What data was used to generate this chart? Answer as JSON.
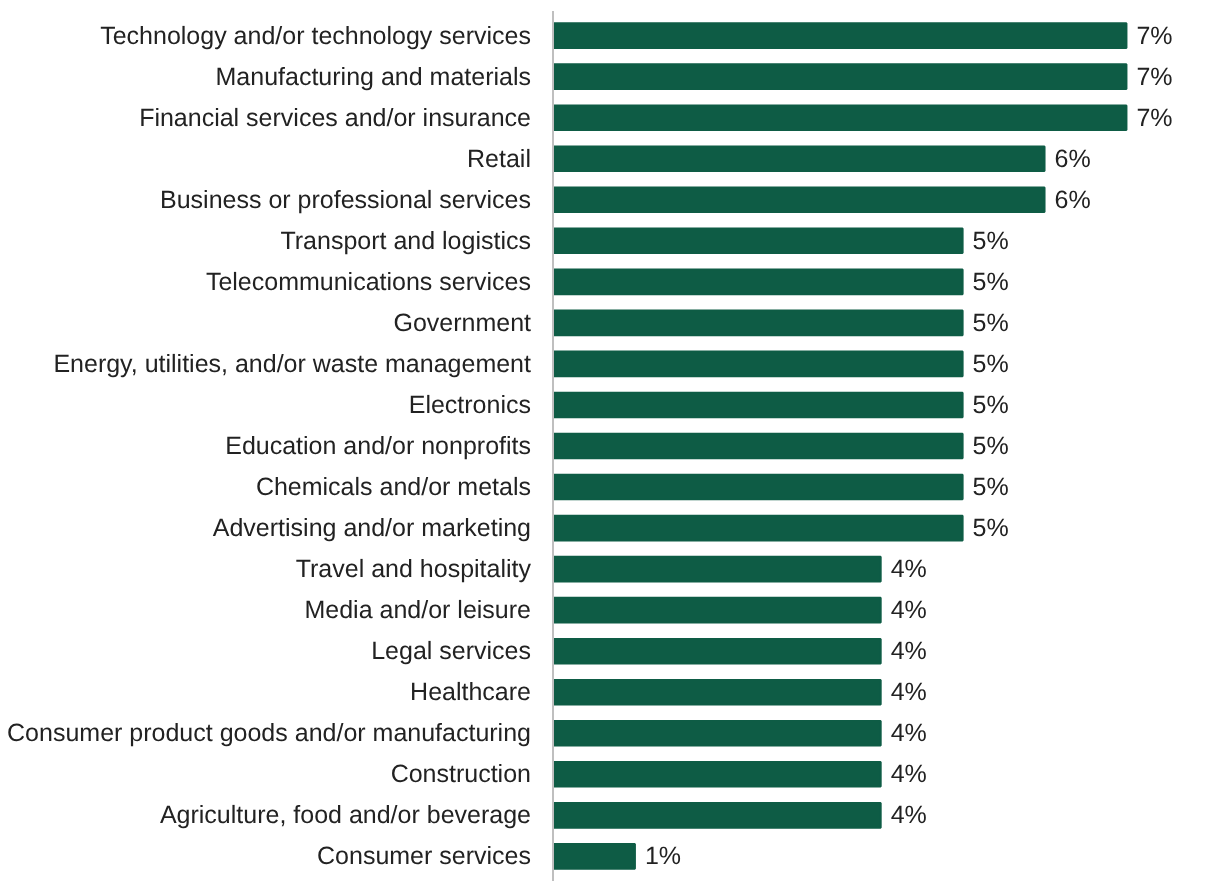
{
  "chart_data": {
    "type": "bar",
    "orientation": "horizontal",
    "categories": [
      "Technology and/or technology services",
      "Manufacturing and materials",
      "Financial services and/or insurance",
      "Retail",
      "Business or professional services",
      "Transport and logistics",
      "Telecommunications services",
      "Government",
      "Energy, utilities, and/or waste management",
      "Electronics",
      "Education and/or nonprofits",
      "Chemicals and/or metals",
      "Advertising and/or marketing",
      "Travel and hospitality",
      "Media and/or leisure",
      "Legal services",
      "Healthcare",
      "Consumer product goods and/or manufacturing",
      "Construction",
      "Agriculture, food and/or beverage",
      "Consumer services"
    ],
    "values": [
      7,
      7,
      7,
      6,
      6,
      5,
      5,
      5,
      5,
      5,
      5,
      5,
      5,
      4,
      4,
      4,
      4,
      4,
      4,
      4,
      1
    ],
    "value_labels": [
      "7%",
      "7%",
      "7%",
      "6%",
      "6%",
      "5%",
      "5%",
      "5%",
      "5%",
      "5%",
      "5%",
      "5%",
      "5%",
      "4%",
      "4%",
      "4%",
      "4%",
      "4%",
      "4%",
      "4%",
      "1%"
    ],
    "color": "#0e5c45"
  }
}
